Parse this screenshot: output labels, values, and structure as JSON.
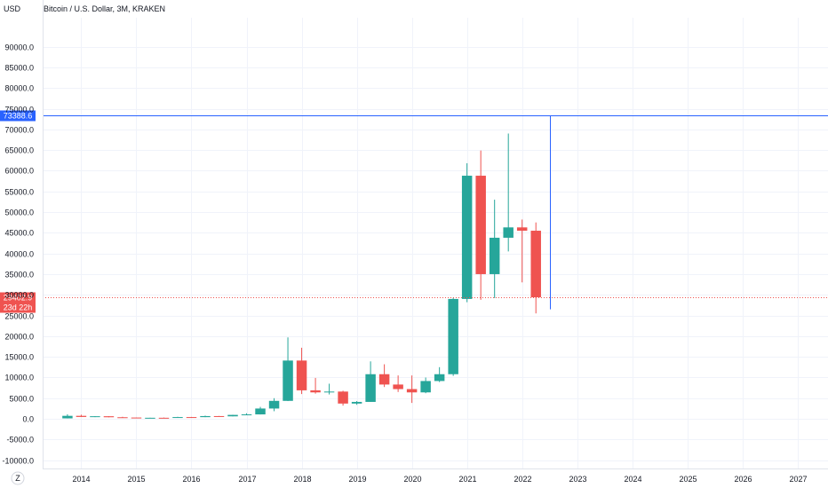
{
  "header": {
    "title": "Bitcoin / U.S. Dollar, 3M, KRAKEN",
    "currency": "USD"
  },
  "footer": {
    "timezone_button": "Z"
  },
  "colors": {
    "up": "#26a69a",
    "down": "#ef5350",
    "horizontal_line": "#2962ff",
    "price_line": "#ef5350",
    "grid": "#f0f3fa",
    "axis_text": "#131722"
  },
  "horizontal_line": {
    "value": 73388.6,
    "label": "73388.6"
  },
  "last_price": {
    "value": 29402.9,
    "label": "29402.9",
    "countdown": "23d 22h"
  },
  "chart_data": {
    "type": "candlestick",
    "title": "Bitcoin / U.S. Dollar, 3M, KRAKEN",
    "ylabel": "USD",
    "ylim": [
      -12000,
      97000
    ],
    "yticks": [
      90000,
      85000,
      80000,
      75000,
      70000,
      65000,
      60000,
      55000,
      50000,
      45000,
      40000,
      35000,
      30000,
      25000,
      20000,
      15000,
      10000,
      5000,
      0,
      -5000,
      -10000
    ],
    "ytick_labels": [
      "90000.0",
      "85000.0",
      "80000.0",
      "75000.0",
      "70000.0",
      "65000.0",
      "60000.0",
      "55000.0",
      "50000.0",
      "45000.0",
      "40000.0",
      "35000.0",
      "30000.0",
      "25000.0",
      "20000.0",
      "15000.0",
      "10000.0",
      "5000.0",
      "0.0",
      "-5000.0",
      "-10000.0"
    ],
    "xlim": [
      2013.3,
      2027.55
    ],
    "xticks": [
      2014,
      2015,
      2016,
      2017,
      2018,
      2019,
      2020,
      2021,
      2022,
      2023,
      2024,
      2025,
      2026,
      2027
    ],
    "xtick_labels": [
      "2014",
      "2015",
      "2016",
      "2017",
      "2018",
      "2019",
      "2020",
      "2021",
      "2022",
      "2023",
      "2024",
      "2025",
      "2026",
      "2027"
    ],
    "grid": true,
    "candles": [
      {
        "t": 2013.75,
        "o": 120,
        "h": 1100,
        "l": 100,
        "c": 730
      },
      {
        "t": 2014.0,
        "o": 730,
        "h": 1000,
        "l": 500,
        "c": 460
      },
      {
        "t": 2014.25,
        "o": 460,
        "h": 660,
        "l": 420,
        "c": 630
      },
      {
        "t": 2014.5,
        "o": 630,
        "h": 650,
        "l": 380,
        "c": 390
      },
      {
        "t": 2014.75,
        "o": 390,
        "h": 500,
        "l": 300,
        "c": 320
      },
      {
        "t": 2015.0,
        "o": 320,
        "h": 330,
        "l": 160,
        "c": 245
      },
      {
        "t": 2015.25,
        "o": 245,
        "h": 270,
        "l": 210,
        "c": 262
      },
      {
        "t": 2015.5,
        "o": 262,
        "h": 320,
        "l": 200,
        "c": 236
      },
      {
        "t": 2015.75,
        "o": 236,
        "h": 500,
        "l": 230,
        "c": 430
      },
      {
        "t": 2016.0,
        "o": 430,
        "h": 470,
        "l": 350,
        "c": 415
      },
      {
        "t": 2016.25,
        "o": 415,
        "h": 780,
        "l": 410,
        "c": 670
      },
      {
        "t": 2016.5,
        "o": 670,
        "h": 700,
        "l": 500,
        "c": 610
      },
      {
        "t": 2016.75,
        "o": 610,
        "h": 990,
        "l": 600,
        "c": 960
      },
      {
        "t": 2017.0,
        "o": 960,
        "h": 1350,
        "l": 890,
        "c": 1080
      },
      {
        "t": 2017.25,
        "o": 1080,
        "h": 2900,
        "l": 1060,
        "c": 2500
      },
      {
        "t": 2017.5,
        "o": 2500,
        "h": 5000,
        "l": 1850,
        "c": 4350
      },
      {
        "t": 2017.75,
        "o": 4350,
        "h": 19700,
        "l": 4300,
        "c": 14100
      },
      {
        "t": 2018.0,
        "o": 14100,
        "h": 17200,
        "l": 6000,
        "c": 6900
      },
      {
        "t": 2018.25,
        "o": 6900,
        "h": 9900,
        "l": 6100,
        "c": 6400
      },
      {
        "t": 2018.5,
        "o": 6400,
        "h": 8500,
        "l": 5900,
        "c": 6600
      },
      {
        "t": 2018.75,
        "o": 6600,
        "h": 6800,
        "l": 3200,
        "c": 3700
      },
      {
        "t": 2019.0,
        "o": 3700,
        "h": 4300,
        "l": 3400,
        "c": 4100
      },
      {
        "t": 2019.25,
        "o": 4100,
        "h": 13900,
        "l": 4100,
        "c": 10800
      },
      {
        "t": 2019.5,
        "o": 10800,
        "h": 13200,
        "l": 7700,
        "c": 8300
      },
      {
        "t": 2019.75,
        "o": 8300,
        "h": 10500,
        "l": 6500,
        "c": 7200
      },
      {
        "t": 2020.0,
        "o": 7200,
        "h": 10500,
        "l": 3850,
        "c": 6400
      },
      {
        "t": 2020.25,
        "o": 6400,
        "h": 10000,
        "l": 6200,
        "c": 9150
      },
      {
        "t": 2020.5,
        "o": 9150,
        "h": 12500,
        "l": 8900,
        "c": 10800
      },
      {
        "t": 2020.75,
        "o": 10800,
        "h": 29300,
        "l": 10400,
        "c": 29000
      },
      {
        "t": 2021.0,
        "o": 29000,
        "h": 61800,
        "l": 28200,
        "c": 58800
      },
      {
        "t": 2021.25,
        "o": 58800,
        "h": 64900,
        "l": 28800,
        "c": 35000
      },
      {
        "t": 2021.5,
        "o": 35000,
        "h": 53000,
        "l": 29200,
        "c": 43800
      },
      {
        "t": 2021.75,
        "o": 43800,
        "h": 69000,
        "l": 40500,
        "c": 46300
      },
      {
        "t": 2022.0,
        "o": 46300,
        "h": 48200,
        "l": 33000,
        "c": 45500
      },
      {
        "t": 2022.25,
        "o": 45500,
        "h": 47500,
        "l": 25500,
        "c": 29400
      }
    ]
  }
}
